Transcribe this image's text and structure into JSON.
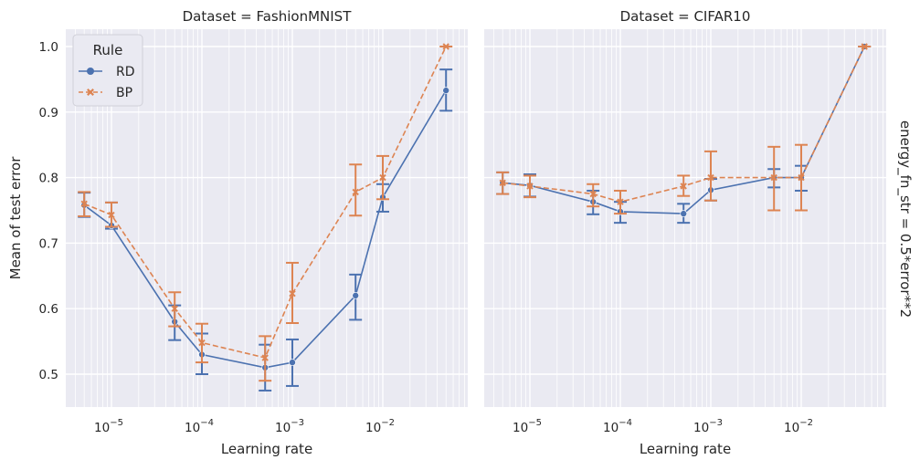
{
  "chart_data": {
    "type": "line",
    "hue_title": "Rule",
    "row_label": "energy_fn_str = 0.5*error**2",
    "legend_placement": "top-left",
    "xscale": "log",
    "grid": true,
    "x_ticks": [
      {
        "value": 1e-05,
        "base": "10",
        "exp": "−5"
      },
      {
        "value": 0.0001,
        "base": "10",
        "exp": "−4"
      },
      {
        "value": 0.001,
        "base": "10",
        "exp": "−3"
      },
      {
        "value": 0.01,
        "base": "10",
        "exp": "−2"
      }
    ],
    "y_ticks": [
      "0.5",
      "0.6",
      "0.7",
      "0.8",
      "0.9",
      "1.0"
    ],
    "colors": {
      "RD": "#4c72b0",
      "BP": "#dd8452"
    },
    "facets": [
      {
        "title": "Dataset = FashionMNIST",
        "xlabel": "Learning rate",
        "ylabel": "Mean of test error",
        "series": [
          {
            "name": "RD",
            "x": [
              5e-06,
              1e-05,
              5e-05,
              0.0001,
              0.0005,
              0.001,
              0.005,
              0.01,
              0.05
            ],
            "y": [
              0.758,
              0.727,
              0.58,
              0.53,
              0.51,
              0.518,
              0.62,
              0.77,
              0.933
            ],
            "err_low": [
              0.74,
              0.722,
              0.552,
              0.5,
              0.475,
              0.482,
              0.583,
              0.748,
              0.902
            ],
            "err_high": [
              0.777,
              0.762,
              0.605,
              0.562,
              0.545,
              0.553,
              0.652,
              0.79,
              0.965
            ]
          },
          {
            "name": "BP",
            "x": [
              5e-06,
              1e-05,
              5e-05,
              0.0001,
              0.0005,
              0.001,
              0.005,
              0.01,
              0.05
            ],
            "y": [
              0.76,
              0.743,
              0.6,
              0.548,
              0.525,
              0.623,
              0.778,
              0.8,
              1.0
            ],
            "err_low": [
              0.741,
              0.725,
              0.573,
              0.518,
              0.49,
              0.578,
              0.742,
              0.767,
              1.0
            ],
            "err_high": [
              0.778,
              0.762,
              0.625,
              0.577,
              0.558,
              0.67,
              0.82,
              0.833,
              1.0
            ]
          }
        ]
      },
      {
        "title": "Dataset = CIFAR10",
        "xlabel": "Learning rate",
        "ylabel": "",
        "series": [
          {
            "name": "RD",
            "x": [
              5e-06,
              1e-05,
              5e-05,
              0.0001,
              0.0005,
              0.001,
              0.005,
              0.01,
              0.05
            ],
            "y": [
              0.792,
              0.788,
              0.763,
              0.748,
              0.745,
              0.781,
              0.8,
              0.8,
              1.0
            ],
            "err_low": [
              0.775,
              0.771,
              0.744,
              0.731,
              0.731,
              0.765,
              0.785,
              0.78,
              1.0
            ],
            "err_high": [
              0.808,
              0.805,
              0.78,
              0.763,
              0.76,
              0.798,
              0.813,
              0.818,
              1.0
            ]
          },
          {
            "name": "BP",
            "x": [
              5e-06,
              1e-05,
              5e-05,
              0.0001,
              0.0005,
              0.001,
              0.005,
              0.01,
              0.05
            ],
            "y": [
              0.792,
              0.787,
              0.775,
              0.763,
              0.787,
              0.8,
              0.8,
              0.8,
              1.0
            ],
            "err_low": [
              0.775,
              0.77,
              0.756,
              0.745,
              0.772,
              0.765,
              0.75,
              0.75,
              1.0
            ],
            "err_high": [
              0.808,
              0.803,
              0.79,
              0.78,
              0.803,
              0.84,
              0.847,
              0.85,
              1.0
            ]
          }
        ]
      }
    ]
  }
}
